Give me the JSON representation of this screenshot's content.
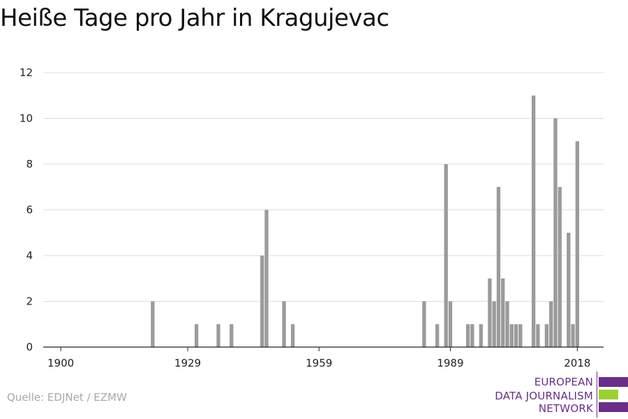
{
  "title": "Heiße Tage pro Jahr in Kragujevac",
  "source": "Quelle: EDJNet / EZMW",
  "logo": {
    "line1": "EUROPEAN",
    "line2": "DATA JOURNALISM",
    "line3": "NETWORK",
    "colors": {
      "purple": "#6a2d8a",
      "green": "#9bd12f"
    }
  },
  "chart_data": {
    "type": "bar",
    "title": "Heiße Tage pro Jahr in Kragujevac",
    "xlabel": "",
    "ylabel": "",
    "xlim": [
      1896,
      2024
    ],
    "ylim": [
      0,
      12
    ],
    "x_ticks": [
      1900,
      1929,
      1959,
      1989,
      2018
    ],
    "y_ticks": [
      0,
      2,
      4,
      6,
      8,
      10,
      12
    ],
    "grid": true,
    "bar_color": "#9b9b9b",
    "x": [
      1921,
      1931,
      1936,
      1939,
      1946,
      1947,
      1951,
      1953,
      1983,
      1986,
      1988,
      1989,
      1993,
      1994,
      1996,
      1998,
      1999,
      2000,
      2001,
      2002,
      2003,
      2004,
      2005,
      2008,
      2009,
      2011,
      2012,
      2013,
      2014,
      2016,
      2017,
      2018
    ],
    "values": [
      2,
      1,
      1,
      1,
      4,
      6,
      2,
      1,
      2,
      1,
      8,
      2,
      1,
      1,
      1,
      3,
      2,
      7,
      3,
      2,
      1,
      1,
      1,
      11,
      1,
      1,
      2,
      10,
      7,
      5,
      1,
      9
    ]
  }
}
